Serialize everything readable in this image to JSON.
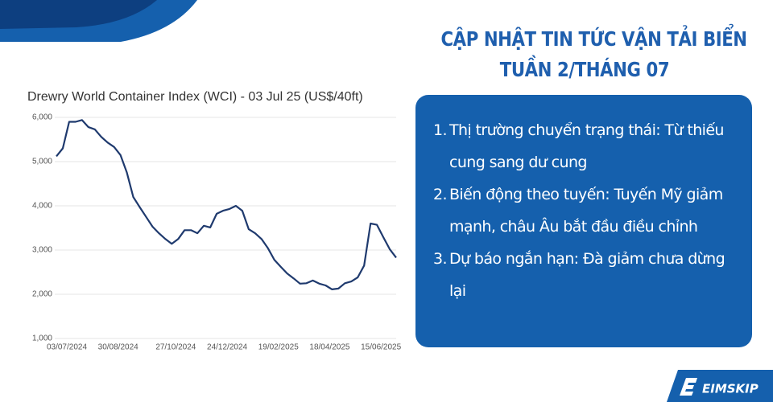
{
  "chart_data": {
    "type": "line",
    "title": "Drewry World Container Index (WCI) - 03 Jul 25 (US$/40ft)",
    "categories": [
      "03/07/2024",
      null,
      null,
      null,
      null,
      null,
      null,
      null,
      "30/08/2024",
      null,
      null,
      null,
      null,
      null,
      null,
      null,
      null,
      "27/10/2024",
      null,
      null,
      null,
      null,
      null,
      null,
      null,
      "24/12/2024",
      null,
      null,
      null,
      null,
      null,
      null,
      null,
      "19/02/2025",
      null,
      null,
      null,
      null,
      null,
      null,
      null,
      "18/04/2025",
      null,
      null,
      null,
      null,
      null,
      null,
      null,
      "15/06/2025",
      null,
      null,
      null,
      null
    ],
    "values": [
      5120,
      5300,
      5900,
      5900,
      5940,
      5780,
      5730,
      5560,
      5430,
      5330,
      5150,
      4750,
      4200,
      3970,
      3750,
      3530,
      3380,
      3250,
      3140,
      3250,
      3450,
      3450,
      3380,
      3550,
      3510,
      3820,
      3890,
      3930,
      4000,
      3890,
      3470,
      3380,
      3250,
      3040,
      2780,
      2620,
      2470,
      2360,
      2240,
      2250,
      2310,
      2240,
      2200,
      2110,
      2130,
      2250,
      2290,
      2380,
      2650,
      3600,
      3570,
      3290,
      3020,
      2830
    ],
    "color": "#1f3a6e",
    "ylim": [
      1000,
      6000
    ],
    "yticks": [
      {
        "value": 1000,
        "label": "1,000"
      },
      {
        "value": 2000,
        "label": "2,000"
      },
      {
        "value": 3000,
        "label": "3,000"
      },
      {
        "value": 4000,
        "label": "4,000"
      },
      {
        "value": 5000,
        "label": "5,000"
      },
      {
        "value": 6000,
        "label": "6,000"
      }
    ],
    "grid": true
  },
  "header": {
    "lines": [
      "CẬP NHẬT TIN TỨC VẬN TẢI BIỂN",
      "TUẦN 2/THÁNG 07"
    ]
  },
  "list": [
    {
      "number": "1.",
      "text": "Thị trường chuyển trạng thái: Từ thiếu cung sang dư cung"
    },
    {
      "number": "2.",
      "text": "Biến động theo tuyến: Tuyến Mỹ giảm mạnh, châu Âu bắt đầu điều chỉnh"
    },
    {
      "number": "3.",
      "text": "Dự báo ngắn hạn: Đà giảm chưa dừng lại"
    }
  ],
  "brand": "EIMSKIP"
}
